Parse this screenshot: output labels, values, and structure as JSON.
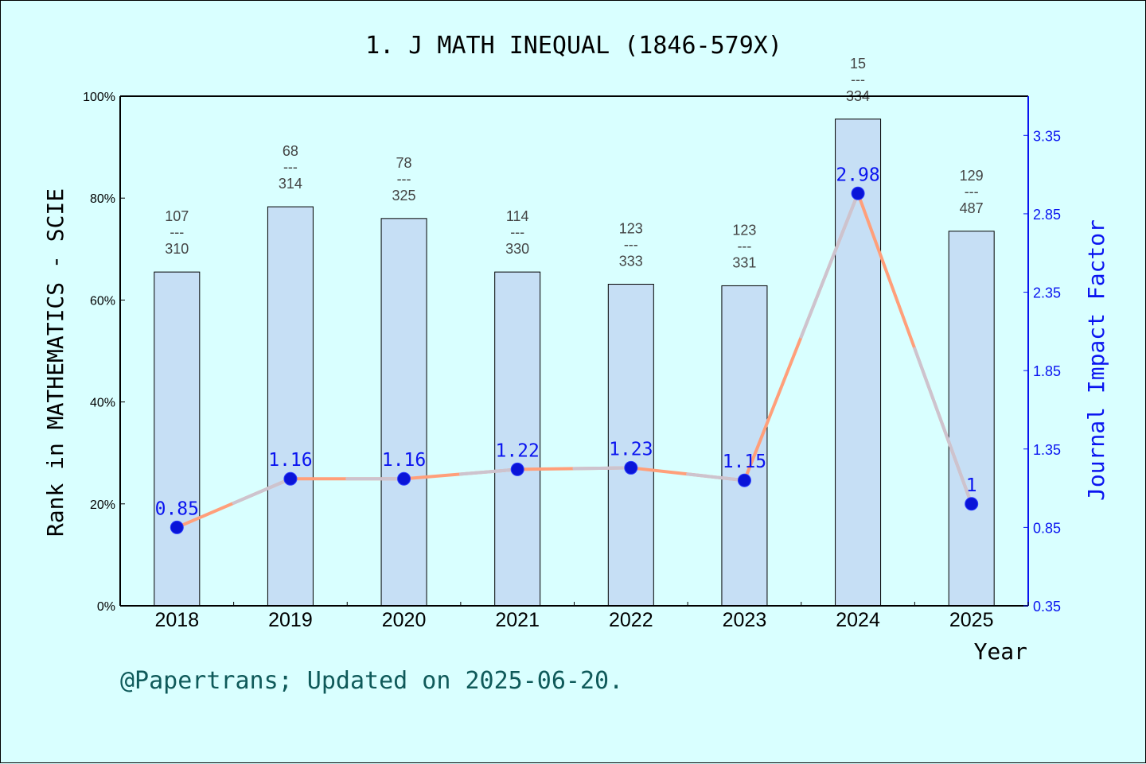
{
  "chart_data": {
    "type": "bar",
    "title": "1. J MATH INEQUAL (1846-579X)",
    "xlabel": "Year",
    "ylabel_left": "Rank in MATHEMATICS - SCIE",
    "ylabel_right": "Journal Impact Factor",
    "footer": "@Papertrans; Updated on 2025-06-20.",
    "categories": [
      "2018",
      "2019",
      "2020",
      "2021",
      "2022",
      "2023",
      "2024",
      "2025"
    ],
    "ylim_left": [
      0,
      100
    ],
    "yticks_left": [
      "0%",
      "20%",
      "40%",
      "60%",
      "80%",
      "100%"
    ],
    "ylim_right": [
      0.35,
      3.6
    ],
    "yticks_right": [
      "0.35",
      "0.85",
      "1.35",
      "1.85",
      "2.35",
      "2.85",
      "3.35"
    ],
    "grid": false,
    "series": [
      {
        "kind": "bar",
        "values_percent": [
          65.5,
          78.3,
          76.0,
          65.5,
          63.1,
          62.8,
          95.5,
          73.5
        ],
        "rank": [
          "107",
          "68",
          "78",
          "114",
          "123",
          "123",
          "15",
          "129"
        ],
        "total": [
          "310",
          "314",
          "325",
          "330",
          "333",
          "331",
          "334",
          "487"
        ]
      },
      {
        "kind": "line",
        "values": [
          0.85,
          1.16,
          1.16,
          1.22,
          1.23,
          1.15,
          2.98,
          1.0
        ],
        "point_labels": [
          "0.85",
          "1.16",
          "1.16",
          "1.22",
          "1.23",
          "1.15",
          "2.98",
          "1"
        ]
      }
    ],
    "rank_separator": "---",
    "colors": {
      "background": "#d9ffff",
      "bar_fill": "#c6dff5",
      "line": "#ff9f7a",
      "marker": "#0a14d8",
      "right_axis": "#0a14f0",
      "footer": "#0f5a5a"
    }
  }
}
